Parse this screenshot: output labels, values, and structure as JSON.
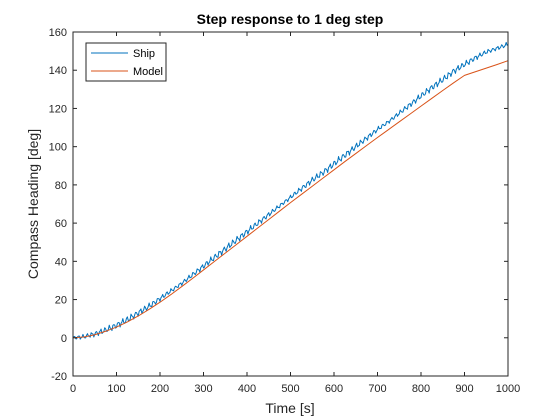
{
  "chart_data": {
    "type": "line",
    "title": "Step response to 1 deg step",
    "xlabel": "Time [s]",
    "ylabel": "Compass Heading [deg]",
    "xlim": [
      0,
      1000
    ],
    "ylim": [
      -20,
      160
    ],
    "xticks": [
      0,
      100,
      200,
      300,
      400,
      500,
      600,
      700,
      800,
      900,
      1000
    ],
    "yticks": [
      -20,
      0,
      20,
      40,
      60,
      80,
      100,
      120,
      140,
      160
    ],
    "grid": false,
    "legend_location": "top-left",
    "series": [
      {
        "name": "Ship",
        "color": "#0072BD",
        "x": [
          0,
          25,
          50,
          75,
          100,
          125,
          150,
          175,
          200,
          225,
          250,
          275,
          300,
          325,
          350,
          375,
          400,
          425,
          450,
          475,
          500,
          525,
          550,
          575,
          600,
          625,
          650,
          675,
          700,
          725,
          750,
          775,
          800,
          825,
          850,
          875,
          900,
          925,
          950,
          975,
          1000
        ],
        "y": [
          0,
          0.5,
          2,
          4,
          6.5,
          9.5,
          13,
          16.5,
          20.5,
          24.5,
          28.5,
          33,
          37.5,
          42,
          46.5,
          51,
          55.5,
          60,
          64.5,
          69,
          73.5,
          78,
          82.5,
          86.5,
          91,
          95.5,
          100,
          104.5,
          109,
          113,
          117.5,
          122,
          126.5,
          131,
          135,
          139.5,
          143,
          146.5,
          149.5,
          151.5,
          153.5
        ],
        "noise_amplitude": 1.8
      },
      {
        "name": "Model",
        "color": "#D95319",
        "x": [
          0,
          25,
          50,
          75,
          100,
          125,
          150,
          175,
          200,
          225,
          250,
          275,
          300,
          325,
          350,
          375,
          400,
          425,
          450,
          475,
          500,
          525,
          550,
          575,
          600,
          625,
          650,
          675,
          700,
          725,
          750,
          775,
          800,
          825,
          850,
          875,
          900,
          925,
          950,
          975,
          1000
        ],
        "y": [
          0,
          0.4,
          1.6,
          3.4,
          5.6,
          8.3,
          11.4,
          14.9,
          18.6,
          22.6,
          26.8,
          31.1,
          35.5,
          39.9,
          44.3,
          48.7,
          53.1,
          57.5,
          61.9,
          66.3,
          70.7,
          75,
          79.3,
          83.6,
          87.9,
          92.2,
          96.4,
          100.6,
          104.8,
          108.9,
          113,
          117.1,
          121.2,
          125.3,
          129.4,
          133.4,
          137.3,
          139.2,
          141.1,
          143,
          145
        ]
      }
    ]
  }
}
